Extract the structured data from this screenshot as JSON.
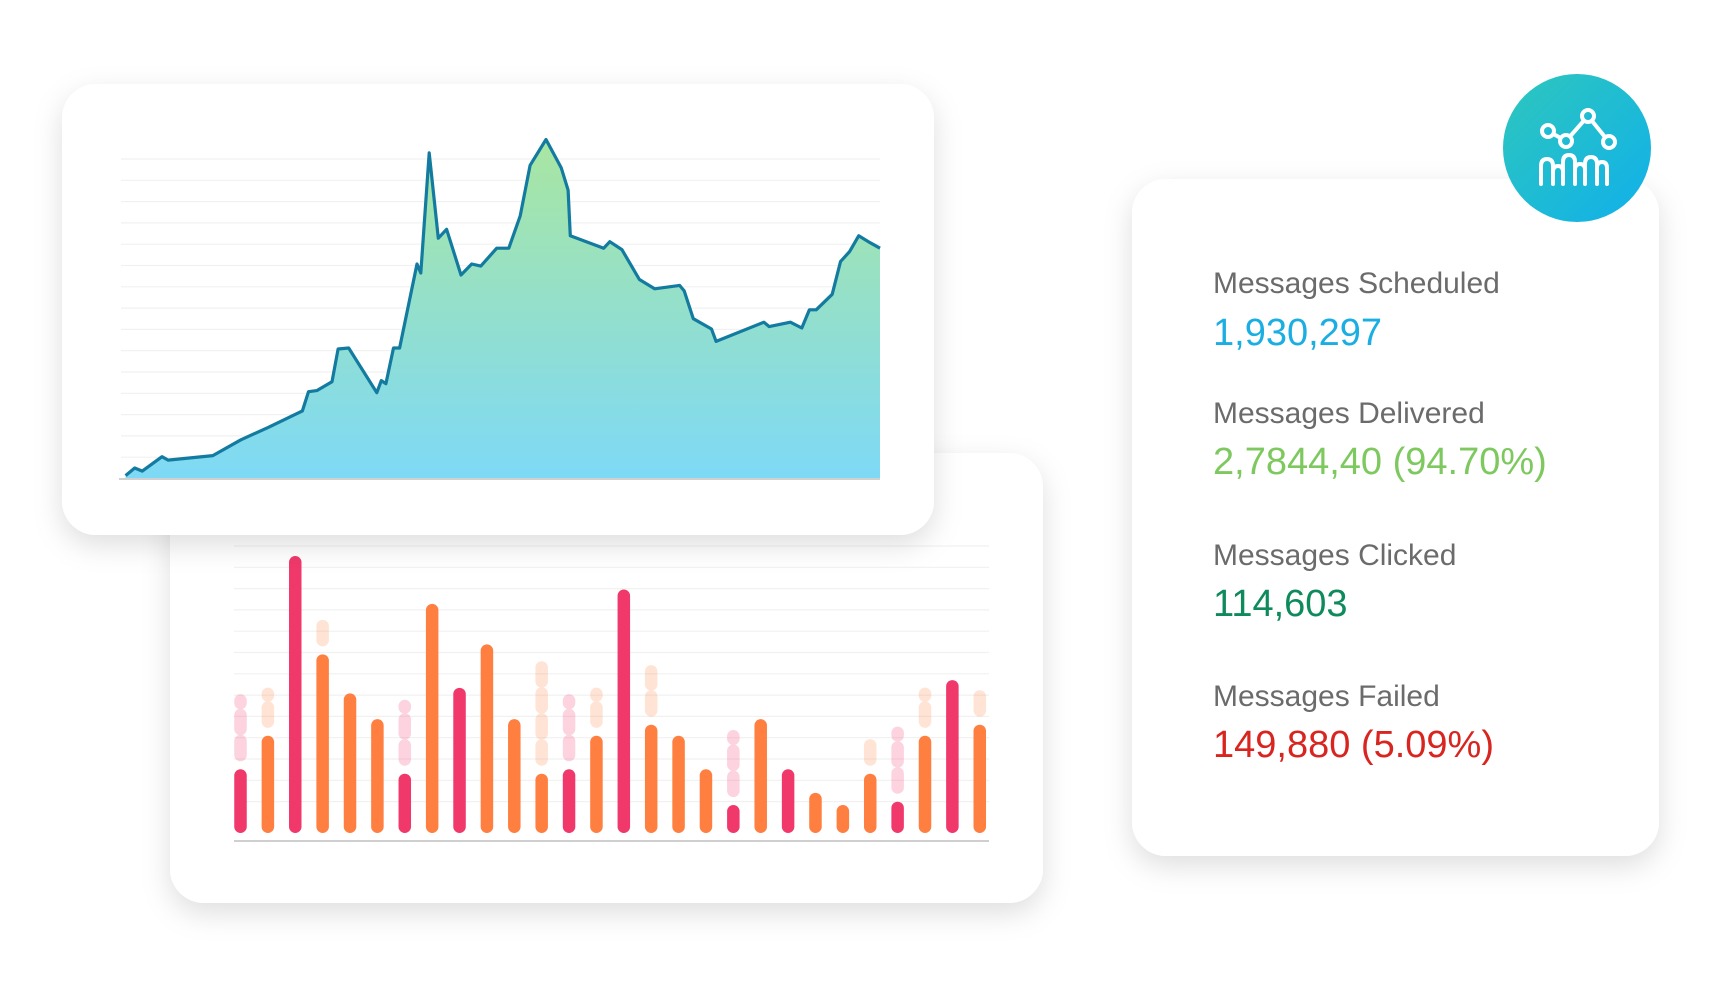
{
  "chart_data": [
    {
      "type": "area",
      "color": "#137aa0",
      "x": [
        0.6,
        1.8,
        2.8,
        5.4,
        6.2,
        12.1,
        15.8,
        19.4,
        23.9,
        24.7,
        25.8,
        27.8,
        28.6,
        30.0,
        33.7,
        34.3,
        34.9,
        35.9,
        36.7,
        39.0,
        39.5,
        40.6,
        41.8,
        42.9,
        44.8,
        46.2,
        47.4,
        49.5,
        51.1,
        52.6,
        53.9,
        56.0,
        58.0,
        58.9,
        59.2,
        63.6,
        64.4,
        66.0,
        68.3,
        70.3,
        73.6,
        74.2,
        75.4,
        77.8,
        78.4,
        84.7,
        85.4,
        88.2,
        89.7,
        90.7,
        91.6,
        93.7,
        94.8,
        96.0,
        97.2,
        98.7,
        100
      ],
      "values": [
        0.7,
        2.9,
        2.0,
        6.2,
        5.2,
        6.5,
        11.1,
        14.7,
        19.5,
        25.1,
        25.4,
        28.0,
        37.5,
        37.8,
        24.8,
        28.3,
        27.4,
        37.8,
        37.8,
        62.2,
        59.6,
        94.5,
        69.7,
        72.3,
        59.0,
        62.2,
        61.6,
        66.8,
        66.8,
        76.2,
        90.9,
        98.4,
        90.2,
        83.7,
        70.4,
        66.8,
        68.7,
        66.4,
        57.7,
        55.0,
        56.0,
        54.4,
        46.3,
        43.3,
        39.7,
        45.3,
        44.0,
        45.3,
        43.6,
        48.9,
        48.9,
        53.4,
        62.9,
        65.8,
        70.4,
        68.4,
        66.8
      ],
      "xlim": [
        0,
        100
      ],
      "ylim": [
        0,
        100
      ]
    },
    {
      "type": "bar",
      "values": [
        23.0,
        35.1,
        100,
        64.5,
        50.4,
        41.1,
        21.4,
        82.7,
        52.4,
        68.1,
        41.1,
        21.4,
        23.0,
        35.1,
        87.9,
        39.1,
        35.1,
        23.0,
        10.1,
        41.1,
        23.0,
        14.5,
        10.1,
        21.4,
        11.3,
        35.1,
        55.2,
        39.1
      ],
      "ghost_values": [
        24.2,
        14.5,
        null,
        13.7,
        null,
        null,
        23.8,
        null,
        null,
        null,
        null,
        39.1,
        24.2,
        14.5,
        null,
        18.6,
        null,
        null,
        24.2,
        null,
        null,
        null,
        null,
        11.3,
        24.2,
        14.5,
        null,
        12.5
      ],
      "colors": [
        "#f0386b",
        "#ff7f41",
        "#f0386b",
        "#ff7f41",
        "#ff7f41",
        "#ff7f41",
        "#f0386b",
        "#ff7f41",
        "#f0386b",
        "#ff7f41",
        "#ff7f41",
        "#ff7f41",
        "#f0386b",
        "#ff7f41",
        "#f0386b",
        "#ff7f41",
        "#ff7f41",
        "#ff7f41",
        "#f0386b",
        "#ff7f41",
        "#f0386b",
        "#ff7f41",
        "#ff7f41",
        "#ff7f41",
        "#f0386b",
        "#ff7f41",
        "#f0386b",
        "#ff7f41"
      ],
      "ylim": [
        0,
        100
      ]
    }
  ],
  "stats": [
    {
      "label": "Messages Scheduled",
      "value": "1,930,297",
      "color": "#1aaee2"
    },
    {
      "label": "Messages Delivered",
      "value": "2,7844,40 (94.70%)",
      "color": "#7ec95f"
    },
    {
      "label": "Messages Clicked",
      "value": "114,603",
      "color": "#0e8a5c"
    },
    {
      "label": "Messages Failed",
      "value": "149,880 (5.09%)",
      "color": "#d8251f"
    }
  ]
}
